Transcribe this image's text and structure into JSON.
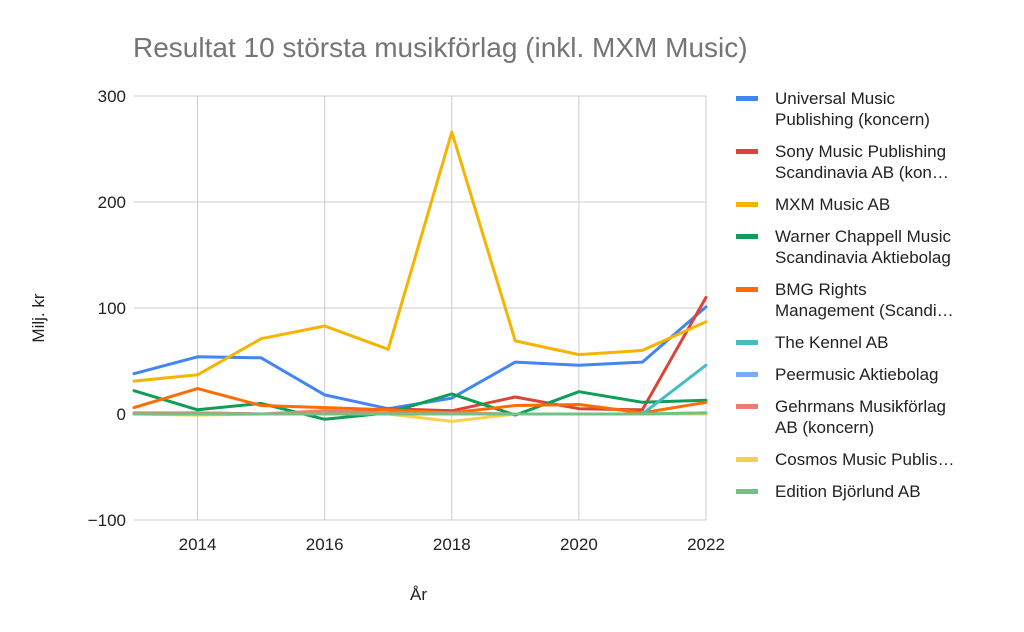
{
  "chart_data": {
    "type": "line",
    "title": "Resultat 10 största musikförlag (inkl. MXM Music)",
    "xlabel": "År",
    "ylabel": "Milj. kr",
    "xlim": [
      2013,
      2022
    ],
    "ylim": [
      -100,
      300
    ],
    "xticks": [
      "2014",
      "2016",
      "2018",
      "2020",
      "2022"
    ],
    "yticks": [
      "−100",
      "0",
      "100",
      "200",
      "300"
    ],
    "grid": true,
    "legend_position": "right",
    "x": [
      2013,
      2014,
      2015,
      2016,
      2017,
      2018,
      2019,
      2020,
      2021,
      2022
    ],
    "series": [
      {
        "name": "Universal Music Publishing (koncern)",
        "legend_lines": [
          "Universal Music",
          "Publishing (koncern)"
        ],
        "color": "#4285F4",
        "values": [
          38,
          54,
          53,
          18,
          5,
          15,
          49,
          46,
          49,
          101
        ]
      },
      {
        "name": "Sony Music Publishing Scandinavia AB (kon…",
        "legend_lines": [
          "Sony Music Publishing",
          "Scandinavia AB (kon…"
        ],
        "color": "#DB4437",
        "values": [
          0,
          1,
          0,
          0,
          5,
          3,
          16,
          5,
          4,
          110
        ]
      },
      {
        "name": "MXM Music AB",
        "legend_lines": [
          "MXM Music AB"
        ],
        "color": "#F4B400",
        "values": [
          31,
          37,
          71,
          83,
          61,
          266,
          69,
          56,
          60,
          87
        ]
      },
      {
        "name": "Warner Chappell Music Scandinavia Aktiebolag",
        "legend_lines": [
          "Warner Chappell Music",
          "Scandinavia Aktiebolag"
        ],
        "color": "#0F9D58",
        "values": [
          22,
          4,
          10,
          -5,
          1,
          19,
          -1,
          21,
          11,
          13
        ]
      },
      {
        "name": "BMG Rights Management (Scandi…",
        "legend_lines": [
          "BMG Rights",
          "Management (Scandi…"
        ],
        "color": "#FF6D00",
        "values": [
          6,
          24,
          8,
          6,
          4,
          1,
          8,
          9,
          1,
          11
        ]
      },
      {
        "name": "The Kennel AB",
        "legend_lines": [
          "The Kennel AB"
        ],
        "color": "#46BDC6",
        "values": [
          0,
          0,
          0,
          0,
          0,
          0,
          0,
          0,
          0,
          46
        ]
      },
      {
        "name": "Peermusic Aktiebolag",
        "legend_lines": [
          "Peermusic Aktiebolag"
        ],
        "color": "#7BAAF7",
        "values": [
          0,
          0,
          0,
          0,
          0,
          0,
          0,
          0,
          0,
          0
        ]
      },
      {
        "name": "Gehrmans Musikförlag AB (koncern)",
        "legend_lines": [
          "Gehrmans Musikförlag",
          "AB (koncern)"
        ],
        "color": "#F07B72",
        "values": [
          1,
          1,
          0,
          3,
          1,
          1,
          0,
          0,
          0,
          1
        ]
      },
      {
        "name": "Cosmos Music Publis…",
        "legend_lines": [
          "Cosmos Music Publis…"
        ],
        "color": "#FCD04F",
        "values": [
          0,
          -1,
          0,
          0,
          0,
          -7,
          0,
          0,
          0,
          0
        ]
      },
      {
        "name": "Edition Björlund AB",
        "legend_lines": [
          "Edition Björlund AB"
        ],
        "color": "#71C287",
        "values": [
          0,
          0,
          0,
          0,
          0,
          0,
          0,
          0,
          0,
          1
        ]
      }
    ]
  }
}
